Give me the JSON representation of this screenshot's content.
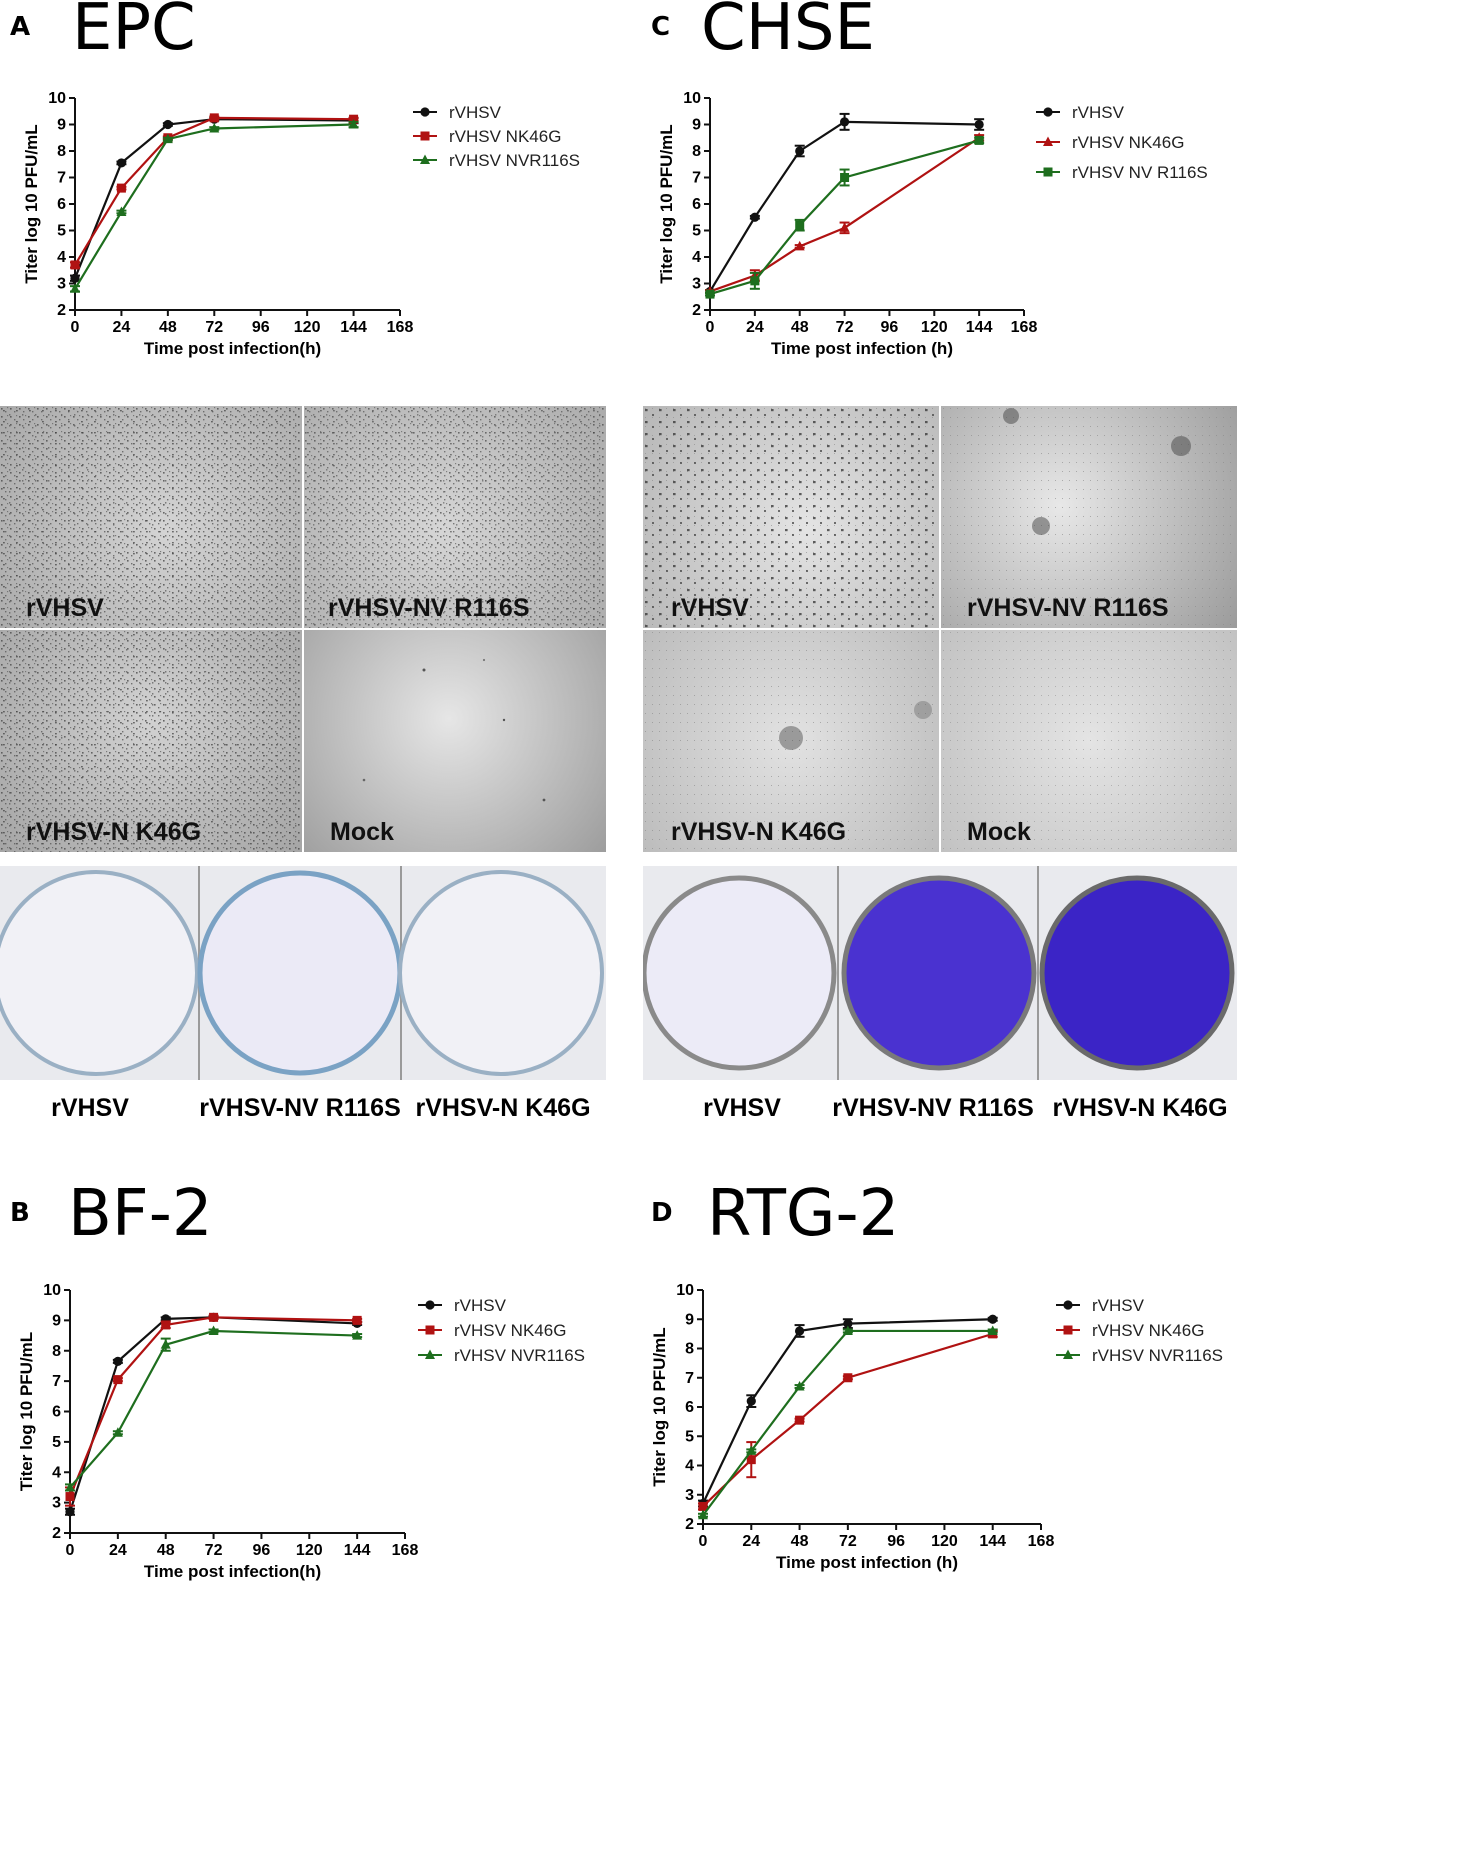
{
  "panels": {
    "a": {
      "letter": "A",
      "title": "EPC"
    },
    "b": {
      "letter": "B",
      "title": "BF-2"
    },
    "c": {
      "letter": "C",
      "title": "CHSE"
    },
    "d": {
      "letter": "D",
      "title": "RTG-2"
    }
  },
  "micrographs": {
    "epc": {
      "top_left": "rVHSV",
      "top_right": "rVHSV-NV R116S",
      "bottom_left": "rVHSV-N K46G",
      "bottom_right": "Mock"
    },
    "chse": {
      "top_left": "rVHSV",
      "top_right": "rVHSV-NV R116S",
      "bottom_left": "rVHSV-N K46G",
      "bottom_right": "Mock"
    }
  },
  "plaques": {
    "epc": {
      "labels": [
        "rVHSV",
        "rVHSV-NV R116S",
        "rVHSV-N K46G"
      ],
      "stain_level": [
        0.02,
        0.12,
        0.02
      ]
    },
    "chse": {
      "labels": [
        "rVHSV",
        "rVHSV-NV R116S",
        "rVHSV-N K46G"
      ],
      "stain_level": [
        0.15,
        0.85,
        0.97
      ]
    }
  },
  "colors": {
    "black": "#111111",
    "red": "#b01212",
    "green": "#1e6e1e",
    "stain": "#3a24c8"
  },
  "chart_data": [
    {
      "type": "line",
      "id": "a",
      "xlabel": "Time post infection(h)",
      "ylabel": "Titer log 10 PFU/mL",
      "xticks": [
        0,
        24,
        48,
        72,
        96,
        120,
        144,
        168
      ],
      "yticks": [
        2,
        3,
        4,
        5,
        6,
        7,
        8,
        9,
        10
      ],
      "xlim": [
        0,
        168
      ],
      "ylim": [
        2,
        10
      ],
      "legend_position": "right",
      "series": [
        {
          "name": "rVHSV",
          "color": "#111111",
          "marker": "circle",
          "x": [
            0,
            24,
            48,
            72,
            144
          ],
          "y": [
            3.2,
            7.55,
            9.0,
            9.2,
            9.15
          ],
          "err": [
            0.1,
            0.05,
            0.05,
            0.05,
            0.1
          ]
        },
        {
          "name": "rVHSV NK46G",
          "color": "#b01212",
          "marker": "square",
          "x": [
            0,
            24,
            48,
            72,
            144
          ],
          "y": [
            3.7,
            6.6,
            8.5,
            9.25,
            9.2
          ],
          "err": [
            0.1,
            0.05,
            0.05,
            0.05,
            0.05
          ]
        },
        {
          "name": "rVHSV NVR116S",
          "color": "#1e6e1e",
          "marker": "triangle",
          "x": [
            0,
            24,
            48,
            72,
            144
          ],
          "y": [
            2.8,
            5.7,
            8.45,
            8.85,
            9.0
          ],
          "err": [
            0.1,
            0.05,
            0.05,
            0.05,
            0.1
          ]
        }
      ]
    },
    {
      "type": "line",
      "id": "c",
      "xlabel": "Time post infection (h)",
      "ylabel": "Titer log 10 PFU/mL",
      "xticks": [
        0,
        24,
        48,
        72,
        96,
        120,
        144,
        168
      ],
      "yticks": [
        2,
        3,
        4,
        5,
        6,
        7,
        8,
        9,
        10
      ],
      "xlim": [
        0,
        168
      ],
      "ylim": [
        2,
        10
      ],
      "legend_position": "right",
      "series": [
        {
          "name": "rVHSV",
          "color": "#111111",
          "marker": "circle",
          "x": [
            0,
            24,
            48,
            72,
            144
          ],
          "y": [
            2.7,
            5.5,
            8.0,
            9.1,
            9.0
          ],
          "err": [
            0.05,
            0.05,
            0.2,
            0.3,
            0.2
          ]
        },
        {
          "name": "rVHSV NK46G",
          "color": "#b01212",
          "marker": "triangle",
          "x": [
            0,
            24,
            48,
            72,
            144
          ],
          "y": [
            2.7,
            3.3,
            4.4,
            5.1,
            8.5
          ],
          "err": [
            0.05,
            0.2,
            0.05,
            0.2,
            0.1
          ]
        },
        {
          "name": "rVHSV NV R116S",
          "color": "#1e6e1e",
          "marker": "square",
          "x": [
            0,
            24,
            48,
            72,
            144
          ],
          "y": [
            2.6,
            3.1,
            5.2,
            7.0,
            8.4
          ],
          "err": [
            0.05,
            0.3,
            0.2,
            0.3,
            0.1
          ]
        }
      ]
    },
    {
      "type": "line",
      "id": "b",
      "xlabel": "Time post infection(h)",
      "ylabel": "Titer log 10 PFU/mL",
      "xticks": [
        0,
        24,
        48,
        72,
        96,
        120,
        144,
        168
      ],
      "yticks": [
        2,
        3,
        4,
        5,
        6,
        7,
        8,
        9,
        10
      ],
      "xlim": [
        0,
        168
      ],
      "ylim": [
        2,
        10
      ],
      "legend_position": "right",
      "series": [
        {
          "name": "rVHSV",
          "color": "#111111",
          "marker": "circle",
          "x": [
            0,
            24,
            48,
            72,
            144
          ],
          "y": [
            2.7,
            7.65,
            9.05,
            9.1,
            8.9
          ],
          "err": [
            0.1,
            0.05,
            0.05,
            0.05,
            0.05
          ]
        },
        {
          "name": "rVHSV NK46G",
          "color": "#b01212",
          "marker": "square",
          "x": [
            0,
            24,
            48,
            72,
            144
          ],
          "y": [
            3.2,
            7.05,
            8.85,
            9.1,
            9.0
          ],
          "err": [
            0.3,
            0.05,
            0.1,
            0.05,
            0.05
          ]
        },
        {
          "name": "rVHSV NVR116S",
          "color": "#1e6e1e",
          "marker": "triangle",
          "x": [
            0,
            24,
            48,
            72,
            144
          ],
          "y": [
            3.5,
            5.3,
            8.2,
            8.65,
            8.5
          ],
          "err": [
            0.1,
            0.05,
            0.2,
            0.05,
            0.05
          ]
        }
      ]
    },
    {
      "type": "line",
      "id": "d",
      "xlabel": "Time post infection (h)",
      "ylabel": "Titer log 10 PFU/mL",
      "xticks": [
        0,
        24,
        48,
        72,
        96,
        120,
        144,
        168
      ],
      "yticks": [
        2,
        3,
        4,
        5,
        6,
        7,
        8,
        9,
        10
      ],
      "xlim": [
        0,
        168
      ],
      "ylim": [
        2,
        10
      ],
      "legend_position": "right",
      "series": [
        {
          "name": "rVHSV",
          "color": "#111111",
          "marker": "circle",
          "x": [
            0,
            24,
            48,
            72,
            144
          ],
          "y": [
            2.7,
            6.2,
            8.6,
            8.85,
            9.0
          ],
          "err": [
            0.1,
            0.2,
            0.2,
            0.15,
            0.05
          ]
        },
        {
          "name": "rVHSV NK46G",
          "color": "#b01212",
          "marker": "square",
          "x": [
            0,
            24,
            48,
            72,
            144
          ],
          "y": [
            2.6,
            4.2,
            5.55,
            7.0,
            8.5
          ],
          "err": [
            0.1,
            0.6,
            0.05,
            0.05,
            0.1
          ]
        },
        {
          "name": "rVHSV NVR116S",
          "color": "#1e6e1e",
          "marker": "triangle",
          "x": [
            0,
            24,
            48,
            72,
            144
          ],
          "y": [
            2.3,
            4.5,
            6.7,
            8.6,
            8.6
          ],
          "err": [
            0.05,
            0.05,
            0.05,
            0.05,
            0.05
          ]
        }
      ]
    }
  ]
}
